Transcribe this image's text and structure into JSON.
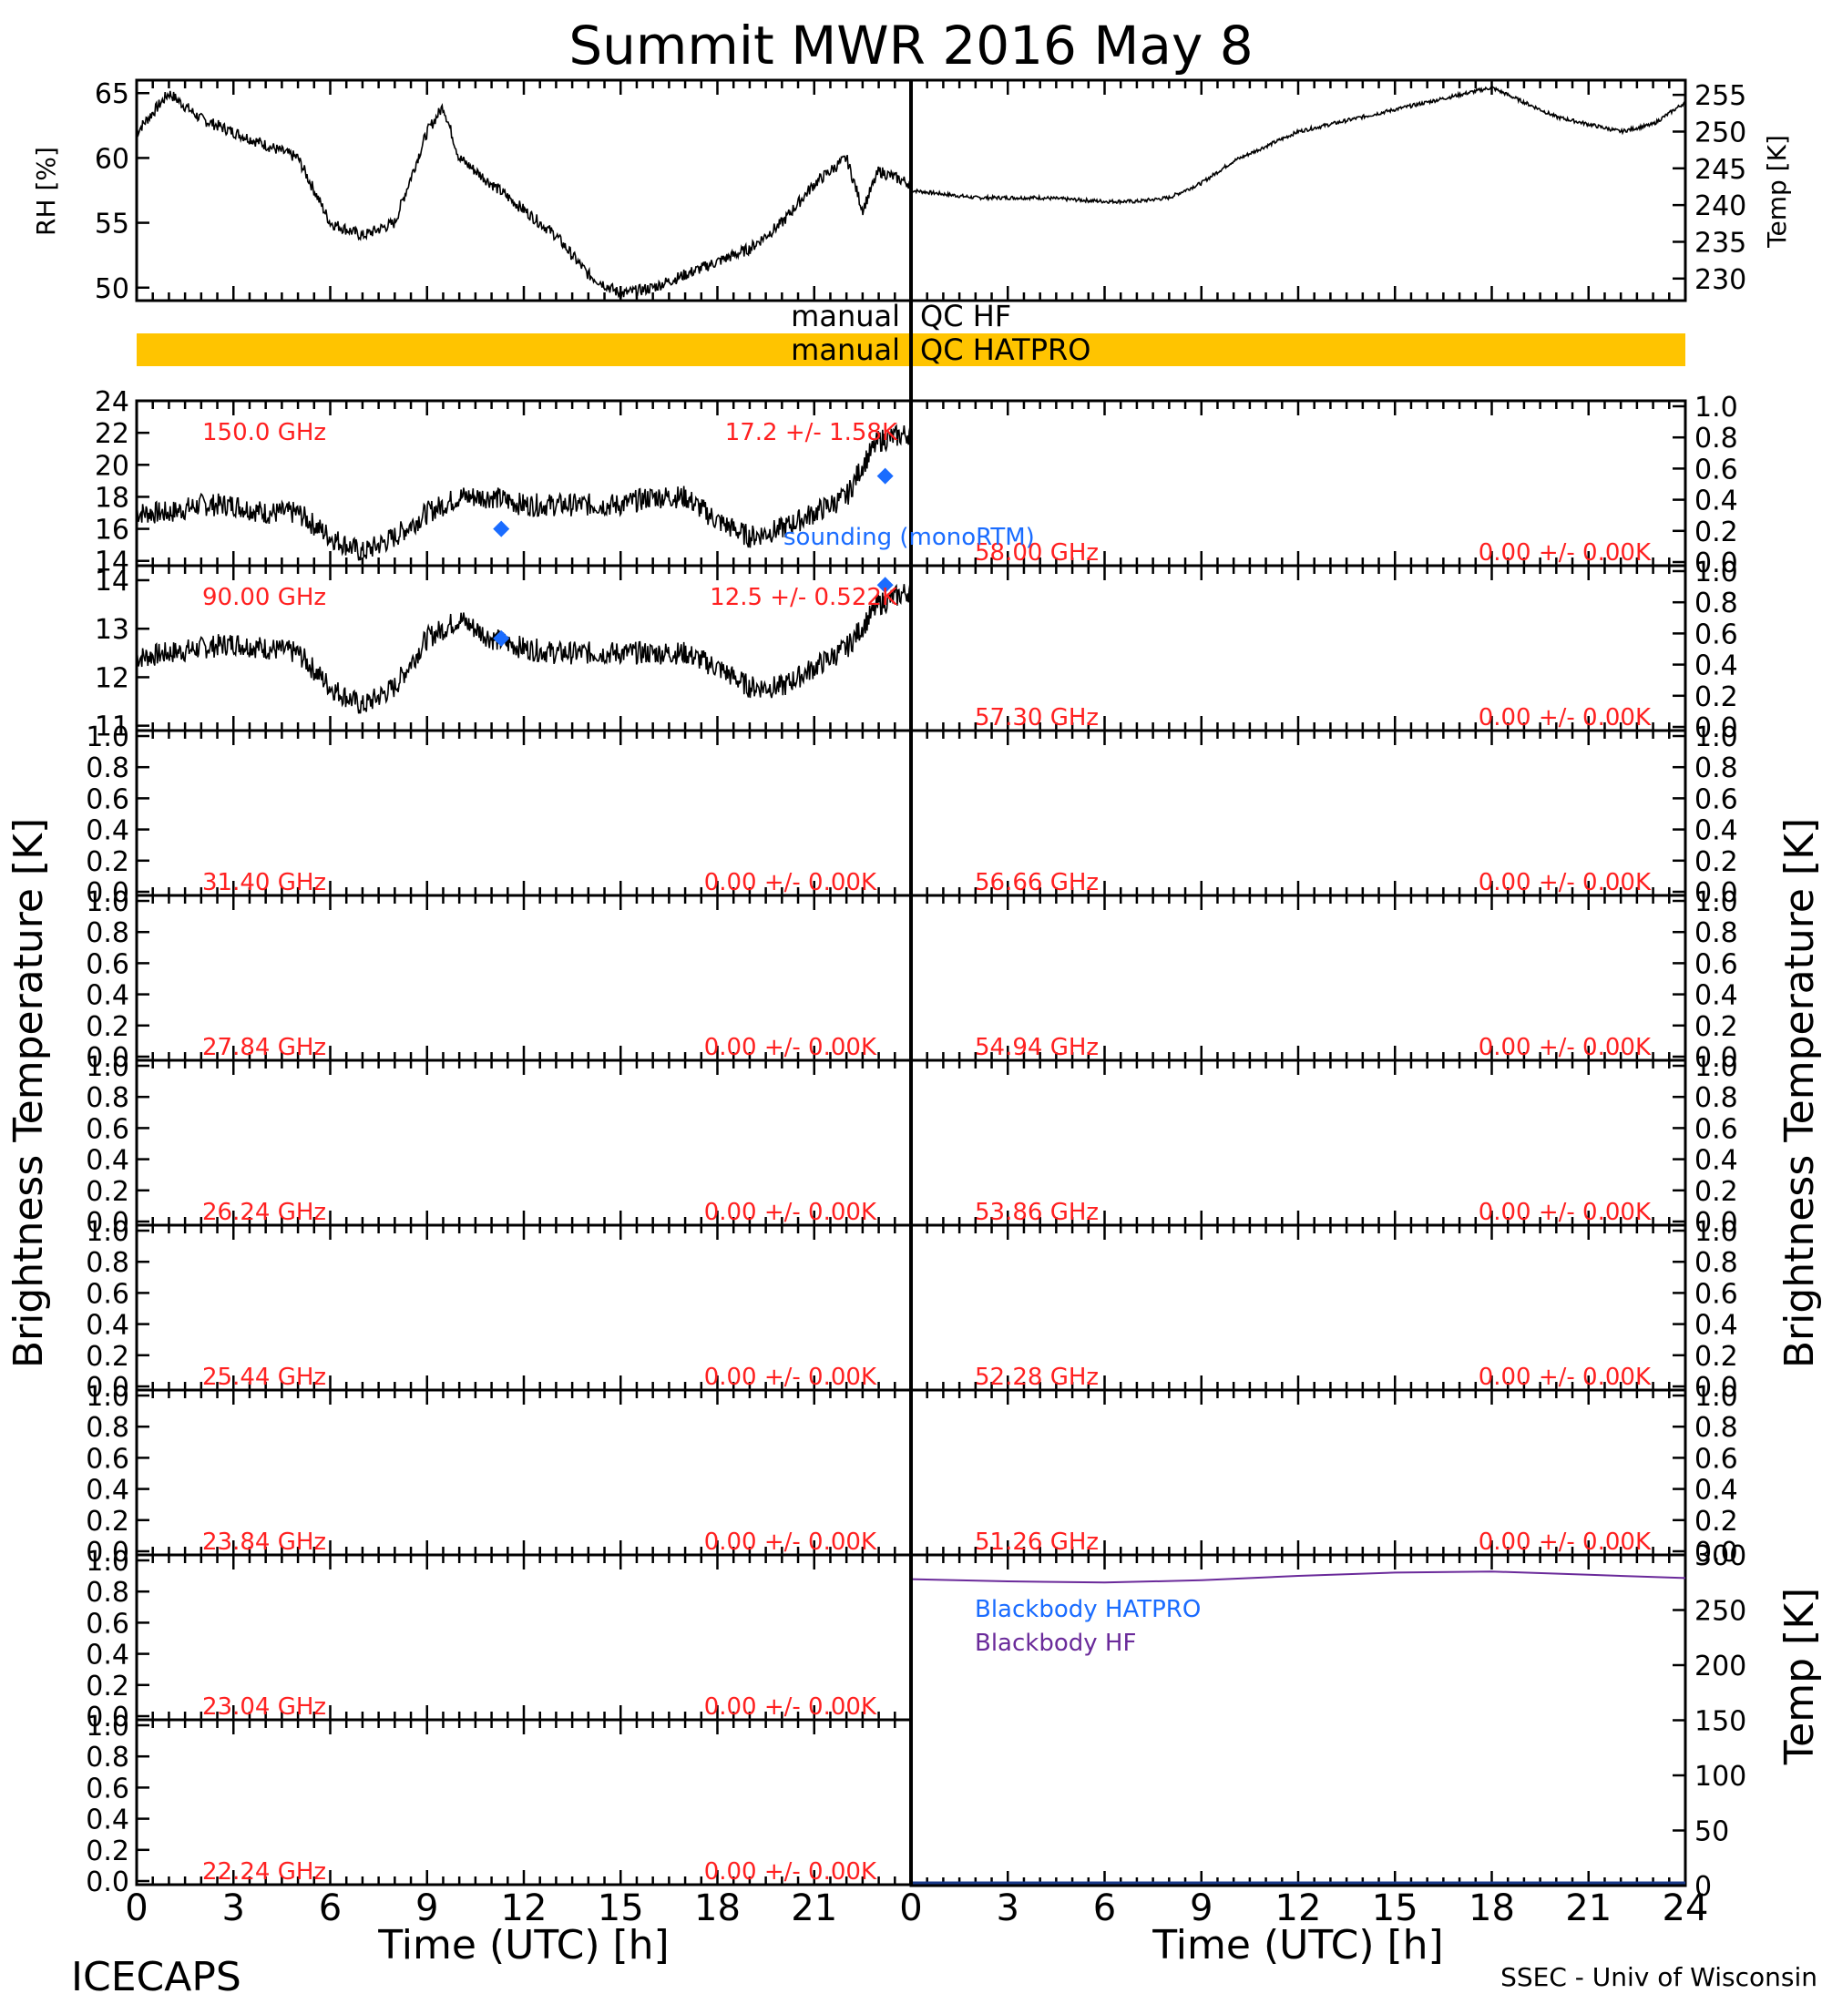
{
  "title": "Summit MWR 2016 May  8",
  "footer": {
    "left": "ICECAPS",
    "right": "SSEC - Univ of Wisconsin"
  },
  "axes_labels": {
    "rh": "RH [%]",
    "temp": "Temp [K]",
    "tb_left": "Brightness Temperature [K]",
    "tb_right": "Brightness Temperature [K]",
    "bb_temp": "Temp [K]",
    "time_left": "Time (UTC) [h]",
    "time_right": "Time (UTC) [h]"
  },
  "qc": {
    "hf_left": "manual",
    "hf_right": "QC HF",
    "hatpro_left": "manual",
    "hatpro_right": "QC HATPRO",
    "hatpro_color": "#ffc400"
  },
  "legend": {
    "sounding": "sounding (monoRTM)",
    "bb_hatpro": "Blackbody HATPRO",
    "bb_hf": "Blackbody HF"
  },
  "colors": {
    "label": "#ff2020",
    "sounding": "#1a6cff",
    "bb_hf": "#6a2a9a"
  },
  "chart_data": [
    {
      "type": "line",
      "panel": "rh",
      "x": [
        0,
        1,
        2,
        3,
        4,
        5,
        6,
        7,
        8,
        9,
        9.5,
        10,
        11,
        12,
        13,
        14,
        15,
        16,
        17,
        18,
        19,
        20,
        21,
        22,
        22.5,
        23,
        24
      ],
      "y": [
        62,
        65,
        63,
        62,
        61,
        60,
        55,
        54,
        55,
        62,
        64,
        60,
        58,
        56,
        54,
        51,
        49.5,
        50,
        51,
        52,
        53,
        55,
        58,
        60,
        56,
        59,
        58
      ],
      "xlim": [
        0,
        24
      ],
      "ylim": [
        49,
        66
      ],
      "yticks": [
        50,
        55,
        60,
        65
      ],
      "ylabel": "RH [%]"
    },
    {
      "type": "line",
      "panel": "temp",
      "x": [
        0,
        2,
        4,
        6,
        7,
        8,
        9,
        10,
        11,
        12,
        13,
        14,
        15,
        16,
        17,
        18,
        19,
        20,
        21,
        22,
        23,
        24
      ],
      "y": [
        242,
        241,
        241,
        240.5,
        240.5,
        241,
        243,
        246,
        248,
        250,
        251,
        252,
        253,
        254,
        255,
        256,
        254,
        252,
        251,
        250,
        251,
        254
      ],
      "xlim": [
        0,
        24
      ],
      "ylim": [
        227,
        257
      ],
      "yticks": [
        230,
        235,
        240,
        245,
        250,
        255
      ],
      "ylabel": "Temp [K]"
    },
    {
      "type": "line",
      "panel": "tb-150",
      "freq": "150.0 GHz",
      "stat": "17.2 +/-  1.58K",
      "x": [
        0,
        1,
        2,
        3,
        4,
        5,
        6,
        7,
        8,
        9,
        10,
        11,
        12,
        13,
        14,
        15,
        16,
        17,
        18,
        19,
        20,
        21,
        22,
        22.5,
        23,
        24
      ],
      "y": [
        17,
        17,
        17.5,
        17.5,
        17,
        17,
        15.5,
        14.5,
        15.5,
        17,
        18,
        18,
        17.5,
        17.5,
        17.5,
        17.5,
        18,
        18,
        16.5,
        15.5,
        16,
        17,
        18,
        20,
        21.5,
        22
      ],
      "sounding": [
        {
          "x": 11.3,
          "y": 16.0
        },
        {
          "x": 23.2,
          "y": 19.3
        }
      ],
      "xlim": [
        0,
        24
      ],
      "ylim": [
        13.7,
        24
      ],
      "yticks": [
        14,
        16,
        18,
        20,
        22,
        24
      ]
    },
    {
      "type": "line",
      "panel": "tb-90",
      "freq": "90.00 GHz",
      "stat": "12.5 +/- 0.522K",
      "x": [
        0,
        1,
        2,
        3,
        4,
        5,
        6,
        7,
        8,
        9,
        10,
        11,
        12,
        13,
        14,
        15,
        16,
        17,
        18,
        19,
        20,
        21,
        22,
        23,
        24
      ],
      "y": [
        12.4,
        12.5,
        12.6,
        12.7,
        12.6,
        12.5,
        11.8,
        11.4,
        11.8,
        12.8,
        13.2,
        12.8,
        12.6,
        12.5,
        12.5,
        12.5,
        12.5,
        12.5,
        12.2,
        11.8,
        11.8,
        12.2,
        12.6,
        13.5,
        13.8
      ],
      "sounding": [
        {
          "x": 11.3,
          "y": 12.8
        },
        {
          "x": 23.2,
          "y": 13.9
        }
      ],
      "xlim": [
        0,
        24
      ],
      "ylim": [
        10.9,
        14.3
      ],
      "yticks": [
        11,
        12,
        13,
        14
      ]
    },
    {
      "type": "line",
      "panel": "blackbody",
      "series": [
        {
          "name": "Blackbody HF",
          "x": [
            0,
            3,
            6,
            9,
            12,
            15,
            18,
            21,
            24
          ],
          "y": [
            278,
            276,
            275,
            277,
            281,
            284,
            285,
            282,
            279
          ]
        }
      ],
      "xlim": [
        0,
        24
      ],
      "ylim": [
        0,
        300
      ],
      "yticks": [
        0,
        50,
        100,
        150,
        200,
        250,
        300
      ],
      "ylabel": "Temp [K]"
    }
  ],
  "empty_panels": {
    "left": [
      {
        "freq": "31.40 GHz",
        "stat": "0.00 +/- 0.00K"
      },
      {
        "freq": "27.84 GHz",
        "stat": "0.00 +/- 0.00K"
      },
      {
        "freq": "26.24 GHz",
        "stat": "0.00 +/- 0.00K"
      },
      {
        "freq": "25.44 GHz",
        "stat": "0.00 +/- 0.00K"
      },
      {
        "freq": "23.84 GHz",
        "stat": "0.00 +/- 0.00K"
      },
      {
        "freq": "23.04 GHz",
        "stat": "0.00 +/- 0.00K"
      },
      {
        "freq": "22.24 GHz",
        "stat": "0.00 +/- 0.00K"
      }
    ],
    "right": [
      {
        "freq": "58.00 GHz",
        "stat": "0.00 +/- 0.00K"
      },
      {
        "freq": "57.30 GHz",
        "stat": "0.00 +/- 0.00K"
      },
      {
        "freq": "56.66 GHz",
        "stat": "0.00 +/- 0.00K"
      },
      {
        "freq": "54.94 GHz",
        "stat": "0.00 +/- 0.00K"
      },
      {
        "freq": "53.86 GHz",
        "stat": "0.00 +/- 0.00K"
      },
      {
        "freq": "52.28 GHz",
        "stat": "0.00 +/- 0.00K"
      },
      {
        "freq": "51.26 GHz",
        "stat": "0.00 +/- 0.00K"
      }
    ],
    "yticks": [
      "0.0",
      "0.2",
      "0.4",
      "0.6",
      "0.8",
      "1.0"
    ]
  },
  "time_ticks": [
    "0",
    "3",
    "6",
    "9",
    "12",
    "15",
    "18",
    "21",
    "24"
  ],
  "time_ticks_left": [
    "0",
    "3",
    "6",
    "9",
    "12",
    "15",
    "18",
    "21"
  ]
}
